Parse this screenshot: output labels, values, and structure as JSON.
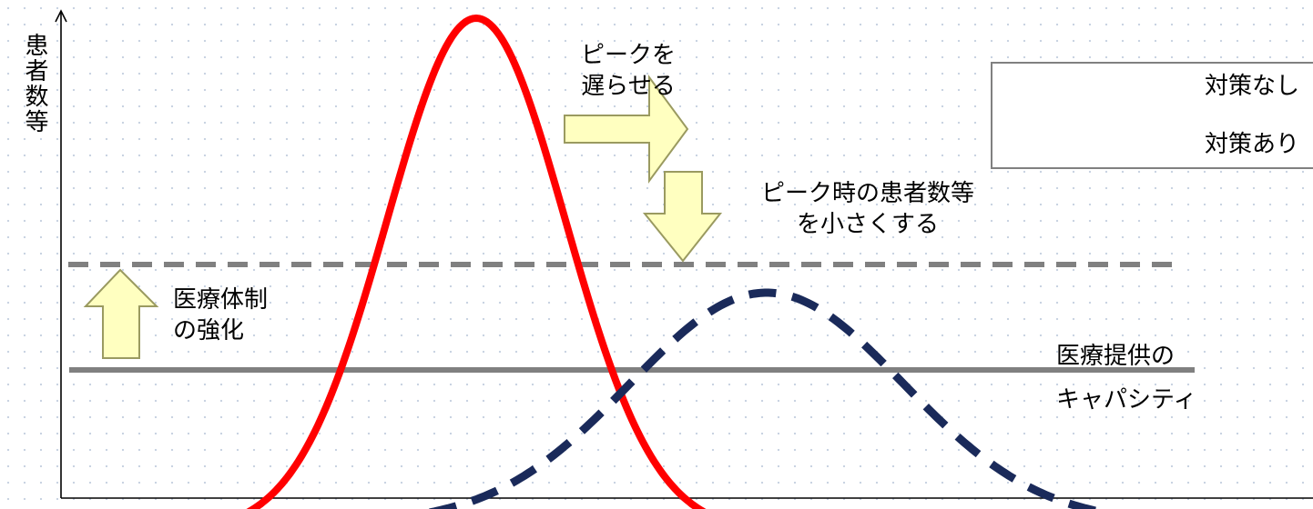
{
  "diagram": {
    "y_axis_label": "患者数等",
    "annotations": {
      "delay_peak": [
        "ピークを",
        "遅らせる"
      ],
      "reduce_peak": [
        "ピーク時の患者数等",
        "を小さくする"
      ],
      "strengthen_care": [
        "医療体制",
        "の強化"
      ],
      "capacity": [
        "医療提供の",
        "キャパシティ"
      ]
    },
    "legend": {
      "no_measures": "対策なし",
      "with_measures": "対策あり"
    },
    "colors": {
      "no_measures_curve": "#ff0000",
      "with_measures_curve": "#1a2a5a",
      "capacity_line": "#808080",
      "arrow_fill": "#ffffc0",
      "arrow_stroke": "#9a9a60"
    }
  }
}
